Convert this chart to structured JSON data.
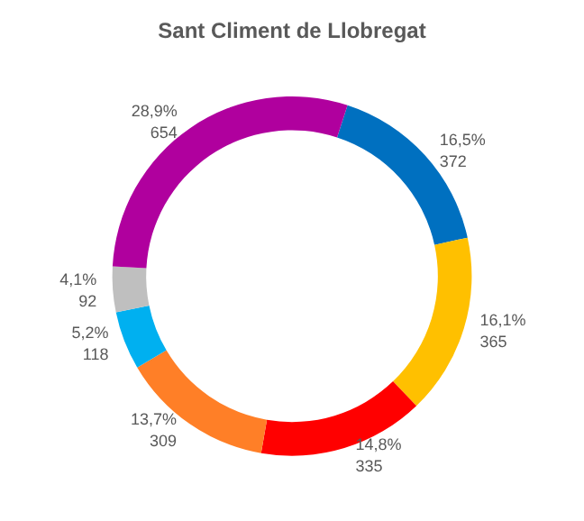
{
  "chart_data": {
    "type": "donut",
    "title": "Sant Climent de Llobregat",
    "categories": [
      null,
      null,
      null,
      null,
      null,
      null,
      null
    ],
    "values": [
      372,
      365,
      335,
      309,
      118,
      92,
      654
    ],
    "colors": [
      "#0070c0",
      "#ffc000",
      "#ff0000",
      "#ff7f27",
      "#00b0f0",
      "#bfbfbf",
      "#b0009e"
    ],
    "value_labels": [
      "16,5%\n372",
      "16,1%\n365",
      "14,8%\n335",
      "13,7%\n309",
      "5,2%\n118",
      "4,1%\n92",
      "28,9%\n654"
    ]
  }
}
